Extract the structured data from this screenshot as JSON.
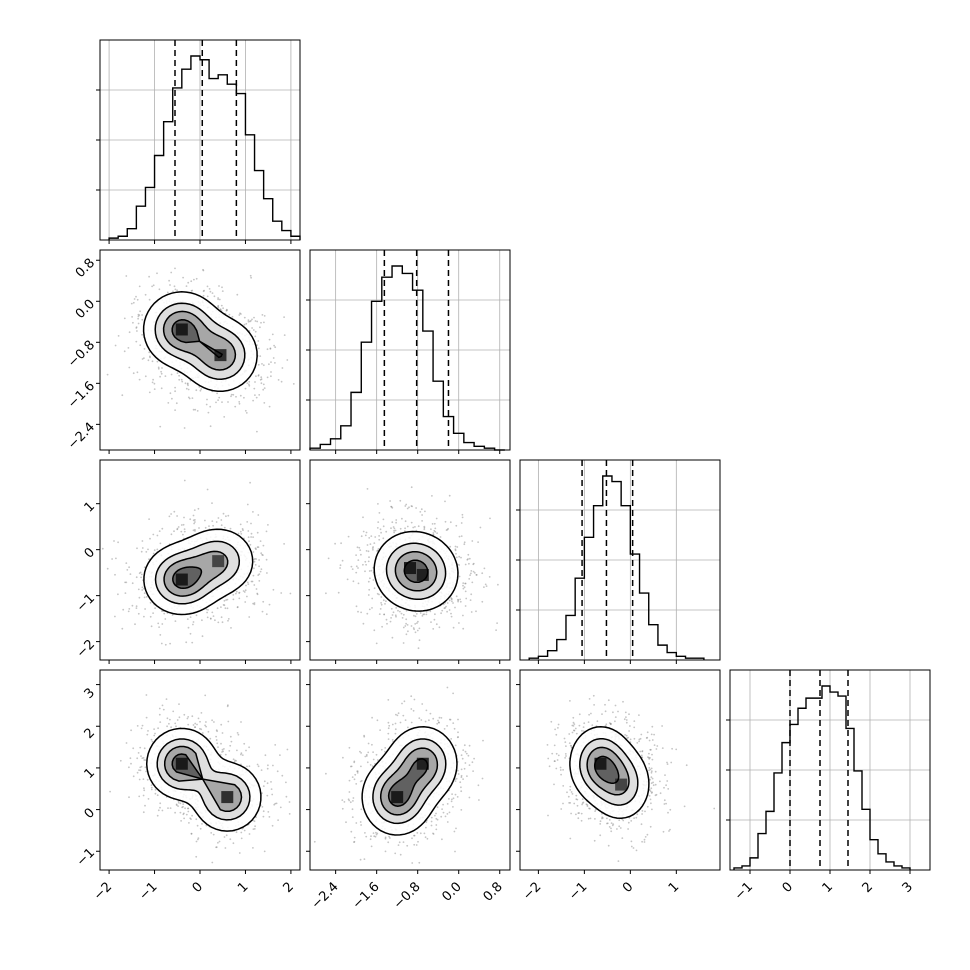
{
  "figure": {
    "type": "corner",
    "dims": 4,
    "colors": {
      "axes": "#000000",
      "grid": "#b0b0b0",
      "hist": "#000000",
      "scatter": "#7f7f7f",
      "background": "#ffffff"
    },
    "grid": true,
    "quantile_lines": "dashed"
  },
  "chart_data": [
    {
      "type": "histogram",
      "id": "hist-0",
      "xlim": [
        -2.2,
        2.2
      ],
      "xticks": [
        "-2",
        "-1",
        "0",
        "1",
        "2"
      ],
      "bin_edges": [
        -2.0,
        -1.8,
        -1.6,
        -1.4,
        -1.2,
        -1.0,
        -0.8,
        -0.6,
        -0.4,
        -0.2,
        0.0,
        0.2,
        0.4,
        0.6,
        0.8,
        1.0,
        1.2,
        1.4,
        1.6,
        1.8,
        2.0,
        2.2
      ],
      "counts": [
        0.01,
        0.02,
        0.06,
        0.18,
        0.28,
        0.45,
        0.63,
        0.81,
        0.91,
        0.98,
        0.96,
        0.86,
        0.88,
        0.83,
        0.78,
        0.56,
        0.37,
        0.22,
        0.1,
        0.05,
        0.02
      ],
      "quantiles": [
        -0.55,
        0.05,
        0.8
      ]
    },
    {
      "type": "histogram",
      "id": "hist-1",
      "xlim": [
        -2.9,
        1.0
      ],
      "xticks": [
        "-2.4",
        "-1.6",
        "-0.8",
        "0.0",
        "0.8"
      ],
      "bin_edges": [
        -2.9,
        -2.7,
        -2.5,
        -2.3,
        -2.1,
        -1.9,
        -1.7,
        -1.5,
        -1.3,
        -1.1,
        -0.9,
        -0.7,
        -0.5,
        -0.3,
        -0.1,
        0.1,
        0.3,
        0.5,
        0.7,
        0.9
      ],
      "counts": [
        0.01,
        0.03,
        0.06,
        0.13,
        0.31,
        0.58,
        0.8,
        0.93,
        0.99,
        0.95,
        0.86,
        0.64,
        0.37,
        0.18,
        0.09,
        0.04,
        0.02,
        0.01,
        0.0
      ],
      "quantiles": [
        -1.45,
        -0.82,
        -0.2
      ]
    },
    {
      "type": "histogram",
      "id": "hist-2",
      "xlim": [
        -2.4,
        1.95
      ],
      "xticks": [
        "-2",
        "-1",
        "0",
        "1"
      ],
      "bin_edges": [
        -2.2,
        -2.0,
        -1.8,
        -1.6,
        -1.4,
        -1.2,
        -1.0,
        -0.8,
        -0.6,
        -0.4,
        -0.2,
        0.0,
        0.2,
        0.4,
        0.6,
        0.8,
        1.0,
        1.2,
        1.4,
        1.6
      ],
      "counts": [
        0.01,
        0.02,
        0.05,
        0.11,
        0.24,
        0.44,
        0.66,
        0.83,
        0.99,
        0.96,
        0.83,
        0.57,
        0.36,
        0.19,
        0.08,
        0.04,
        0.02,
        0.01,
        0.01
      ],
      "quantiles": [
        -1.05,
        -0.52,
        0.05
      ]
    },
    {
      "type": "histogram",
      "id": "hist-3",
      "xlim": [
        -1.5,
        3.5
      ],
      "xticks": [
        "-1",
        "0",
        "1",
        "2",
        "3"
      ],
      "bin_edges": [
        -1.4,
        -1.2,
        -1.0,
        -0.8,
        -0.6,
        -0.4,
        -0.2,
        0.0,
        0.2,
        0.4,
        0.6,
        0.8,
        1.0,
        1.2,
        1.4,
        1.6,
        1.8,
        2.0,
        2.2,
        2.4,
        2.6,
        2.8,
        3.0
      ],
      "counts": [
        0.01,
        0.02,
        0.06,
        0.18,
        0.29,
        0.48,
        0.63,
        0.72,
        0.8,
        0.85,
        0.85,
        0.91,
        0.88,
        0.86,
        0.7,
        0.49,
        0.3,
        0.15,
        0.08,
        0.04,
        0.02,
        0.01
      ],
      "quantiles": [
        0.0,
        0.75,
        1.45
      ]
    },
    {
      "type": "density2d",
      "id": "pair-1-0",
      "x_param": 0,
      "y_param": 1,
      "xlim": [
        -2.2,
        2.2
      ],
      "ylim": [
        -2.9,
        1.0
      ],
      "yticks": [
        "0.8",
        "0.0",
        "-0.8",
        "-1.6",
        "-2.4"
      ],
      "peaks": [
        {
          "x": -0.4,
          "y": -0.55,
          "w": 1.0
        },
        {
          "x": 0.45,
          "y": -1.05,
          "w": 0.85
        }
      ],
      "spread": [
        0.55,
        0.48
      ]
    },
    {
      "type": "density2d",
      "id": "pair-2-0",
      "x_param": 0,
      "y_param": 2,
      "xlim": [
        -2.2,
        2.2
      ],
      "ylim": [
        -2.4,
        1.95
      ],
      "yticks": [
        "1",
        "0",
        "-1",
        "-2"
      ],
      "peaks": [
        {
          "x": -0.4,
          "y": -0.65,
          "w": 1.0
        },
        {
          "x": 0.4,
          "y": -0.25,
          "w": 0.7
        }
      ],
      "spread": [
        0.55,
        0.5
      ]
    },
    {
      "type": "density2d",
      "id": "pair-2-1",
      "x_param": 1,
      "y_param": 2,
      "xlim": [
        -2.9,
        1.0
      ],
      "ylim": [
        -2.4,
        1.95
      ],
      "peaks": [
        {
          "x": -0.95,
          "y": -0.4,
          "w": 1.0
        },
        {
          "x": -0.7,
          "y": -0.55,
          "w": 0.9
        }
      ],
      "spread": [
        0.5,
        0.55
      ]
    },
    {
      "type": "density2d",
      "id": "pair-3-0",
      "x_param": 0,
      "y_param": 3,
      "xlim": [
        -2.2,
        2.2
      ],
      "ylim": [
        -1.45,
        3.35
      ],
      "yticks": [
        "3",
        "2",
        "1",
        "0",
        "-1"
      ],
      "peaks": [
        {
          "x": -0.4,
          "y": 1.1,
          "w": 1.0
        },
        {
          "x": 0.6,
          "y": 0.3,
          "w": 0.85
        }
      ],
      "spread": [
        0.5,
        0.55
      ]
    },
    {
      "type": "density2d",
      "id": "pair-3-1",
      "x_param": 1,
      "y_param": 3,
      "xlim": [
        -2.9,
        1.0
      ],
      "ylim": [
        -1.45,
        3.35
      ],
      "peaks": [
        {
          "x": -1.2,
          "y": 0.3,
          "w": 1.0
        },
        {
          "x": -0.7,
          "y": 1.1,
          "w": 0.9
        }
      ],
      "spread": [
        0.45,
        0.6
      ]
    },
    {
      "type": "density2d",
      "id": "pair-3-2",
      "x_param": 2,
      "y_param": 3,
      "xlim": [
        -2.4,
        1.95
      ],
      "ylim": [
        -1.45,
        3.35
      ],
      "peaks": [
        {
          "x": -0.65,
          "y": 1.1,
          "w": 1.0
        },
        {
          "x": -0.2,
          "y": 0.6,
          "w": 0.7
        }
      ],
      "spread": [
        0.45,
        0.6
      ]
    }
  ]
}
